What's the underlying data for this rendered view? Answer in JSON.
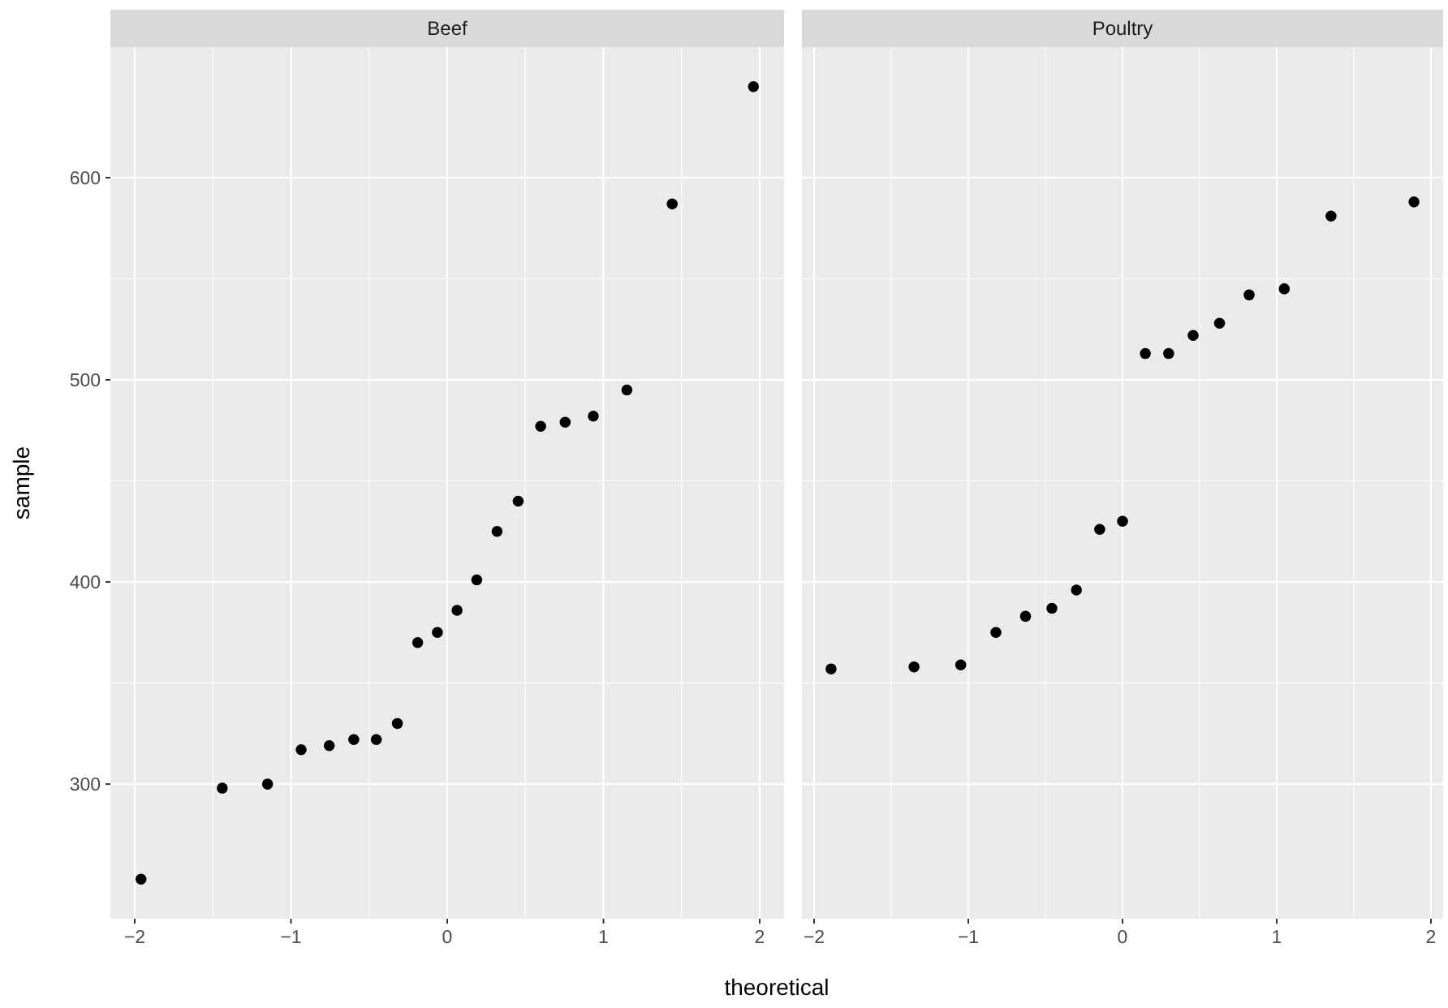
{
  "chart_data": [
    {
      "type": "scatter",
      "title": "Beef",
      "ylabel": "sample",
      "xlabel": "theoretical",
      "marker": "circle",
      "grid": true,
      "x": [
        -1.96,
        -1.44,
        -1.15,
        -0.935,
        -0.755,
        -0.598,
        -0.454,
        -0.319,
        -0.189,
        -0.063,
        0.063,
        0.189,
        0.319,
        0.454,
        0.598,
        0.755,
        0.935,
        1.15,
        1.44,
        1.96
      ],
      "values": [
        253,
        298,
        300,
        317,
        319,
        322,
        322,
        330,
        370,
        375,
        386,
        401,
        425,
        440,
        477,
        479,
        482,
        495,
        587,
        645
      ],
      "color": "#000000",
      "xlim": [
        -2.156,
        2.156
      ],
      "xticks": [
        -2,
        -1,
        0,
        1,
        2
      ],
      "ylim": [
        233.4,
        664.6
      ],
      "yticks": [
        300,
        400,
        500,
        600
      ]
    },
    {
      "type": "scatter",
      "title": "Poultry",
      "marker": "circle",
      "grid": true,
      "tick_labels": "x",
      "x": [
        -1.89,
        -1.352,
        -1.049,
        -0.821,
        -0.629,
        -0.458,
        -0.299,
        -0.148,
        0,
        0.148,
        0.299,
        0.458,
        0.629,
        0.821,
        1.049,
        1.352,
        1.89
      ],
      "values": [
        357,
        358,
        359,
        375,
        383,
        387,
        396,
        426,
        430,
        513,
        513,
        522,
        528,
        542,
        545,
        581,
        588
      ],
      "color": "#000000",
      "xlim": [
        -2.079,
        2.079
      ],
      "xticks": [
        -2,
        -1,
        0,
        1,
        2
      ],
      "ylim": [
        233.4,
        664.6
      ],
      "yticks": [
        300,
        400,
        500,
        600
      ]
    }
  ]
}
